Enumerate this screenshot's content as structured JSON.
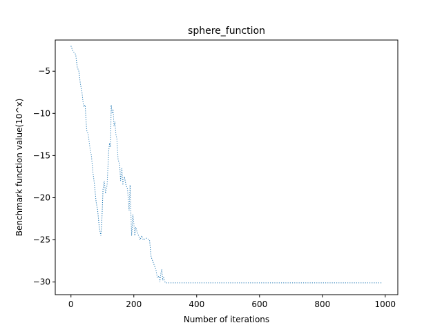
{
  "chart_data": {
    "type": "line",
    "title": "sphere_function",
    "xlabel": "Number of iterations",
    "ylabel": "Benchmark function value(10^x)",
    "xlim": [
      -50,
      1040
    ],
    "ylim": [
      -31.5,
      -1.3
    ],
    "xticks": [
      0,
      200,
      400,
      600,
      800,
      1000
    ],
    "yticks": [
      -30,
      -25,
      -20,
      -15,
      -10,
      -5
    ],
    "grid": false,
    "series": [
      {
        "color": "#1f77b4",
        "linestyle": "dotted",
        "points": [
          [
            0,
            -2.0
          ],
          [
            5,
            -2.5
          ],
          [
            10,
            -2.8
          ],
          [
            15,
            -3.0
          ],
          [
            20,
            -4.5
          ],
          [
            25,
            -5.0
          ],
          [
            30,
            -6.5
          ],
          [
            35,
            -7.5
          ],
          [
            40,
            -9.2
          ],
          [
            45,
            -9.0
          ],
          [
            50,
            -12.0
          ],
          [
            55,
            -12.5
          ],
          [
            60,
            -14.0
          ],
          [
            65,
            -15.0
          ],
          [
            70,
            -17.0
          ],
          [
            75,
            -18.5
          ],
          [
            80,
            -20.5
          ],
          [
            85,
            -21.5
          ],
          [
            90,
            -23.5
          ],
          [
            95,
            -24.5
          ],
          [
            98,
            -23.0
          ],
          [
            102,
            -19.0
          ],
          [
            106,
            -18.0
          ],
          [
            110,
            -19.5
          ],
          [
            115,
            -18.5
          ],
          [
            120,
            -14.5
          ],
          [
            123,
            -13.5
          ],
          [
            126,
            -14.0
          ],
          [
            128,
            -9.0
          ],
          [
            131,
            -10.0
          ],
          [
            134,
            -9.5
          ],
          [
            137,
            -11.5
          ],
          [
            140,
            -11.0
          ],
          [
            143,
            -12.5
          ],
          [
            146,
            -13.0
          ],
          [
            150,
            -15.5
          ],
          [
            155,
            -16.0
          ],
          [
            158,
            -18.0
          ],
          [
            162,
            -16.5
          ],
          [
            165,
            -18.5
          ],
          [
            170,
            -17.5
          ],
          [
            175,
            -18.5
          ],
          [
            180,
            -19.0
          ],
          [
            185,
            -21.5
          ],
          [
            188,
            -18.5
          ],
          [
            190,
            -21.0
          ],
          [
            193,
            -24.5
          ],
          [
            197,
            -22.0
          ],
          [
            200,
            -23.0
          ],
          [
            203,
            -24.5
          ],
          [
            206,
            -23.5
          ],
          [
            210,
            -24.0
          ],
          [
            215,
            -24.5
          ],
          [
            220,
            -25.0
          ],
          [
            225,
            -24.5
          ],
          [
            230,
            -25.0
          ],
          [
            240,
            -24.8
          ],
          [
            250,
            -25.0
          ],
          [
            255,
            -27.0
          ],
          [
            260,
            -27.5
          ],
          [
            265,
            -28.0
          ],
          [
            270,
            -28.5
          ],
          [
            275,
            -29.5
          ],
          [
            280,
            -29.3
          ],
          [
            283,
            -30.0
          ],
          [
            286,
            -29.0
          ],
          [
            289,
            -28.5
          ],
          [
            292,
            -29.8
          ],
          [
            295,
            -29.5
          ],
          [
            300,
            -30.1
          ],
          [
            990,
            -30.1
          ]
        ]
      }
    ]
  }
}
